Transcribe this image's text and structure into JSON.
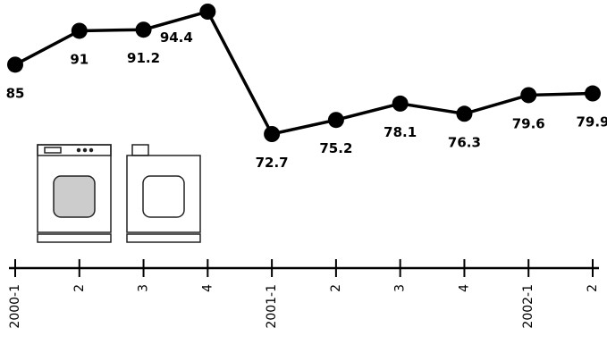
{
  "chart_data": {
    "type": "line",
    "categories": [
      "2000-1",
      "2",
      "3",
      "4",
      "2001-1",
      "2",
      "3",
      "4",
      "2002-1",
      "2"
    ],
    "values": [
      85,
      91,
      91.2,
      94.4,
      72.7,
      75.2,
      78.1,
      76.3,
      79.6,
      79.9
    ],
    "color": "#000000"
  }
}
